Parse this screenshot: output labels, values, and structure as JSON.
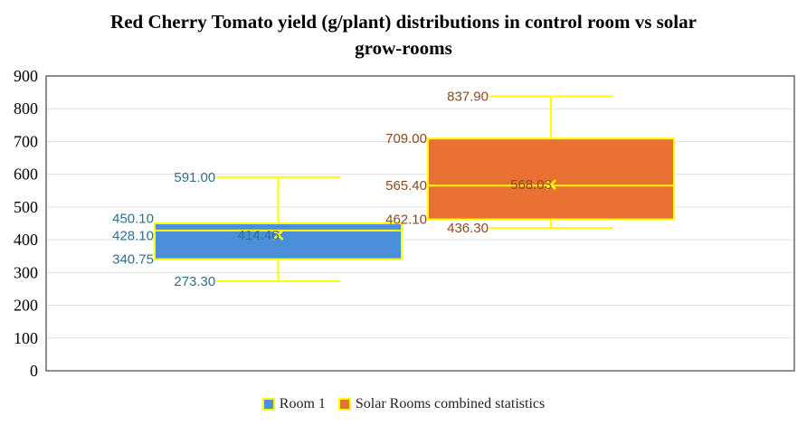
{
  "chart_data": {
    "type": "box",
    "title": "Red Cherry Tomato yield (g/plant) distributions in control room vs solar grow-rooms",
    "title_lines": [
      "Red Cherry Tomato yield (g/plant) distributions in control room vs solar",
      "grow-rooms"
    ],
    "ylim": [
      0,
      900
    ],
    "yticks": [
      0,
      100,
      200,
      300,
      400,
      500,
      600,
      700,
      800,
      900
    ],
    "grid": true,
    "legend_position": "bottom",
    "series": [
      {
        "name": "Room 1",
        "color": "#4a90d9",
        "label_color": "#2f6f92",
        "min": 273.3,
        "q1": 340.75,
        "median": 428.1,
        "q3": 450.1,
        "max": 591.0,
        "mean": 414.46,
        "labels": {
          "min": "273.30",
          "q1": "340.75",
          "median": "428.10",
          "q3": "450.10",
          "max": "591.00",
          "mean": "414.46"
        }
      },
      {
        "name": "Solar Rooms combined statistics",
        "color": "#e97132",
        "label_color": "#8c4a1e",
        "min": 436.3,
        "q1": 462.1,
        "median": 565.4,
        "q3": 709.0,
        "max": 837.9,
        "mean": 568.03,
        "labels": {
          "min": "436.30",
          "q1": "462.10",
          "median": "565.40",
          "q3": "709.00",
          "max": "837.90",
          "mean": "568.03"
        }
      }
    ],
    "outline_color": "#ffff00"
  }
}
